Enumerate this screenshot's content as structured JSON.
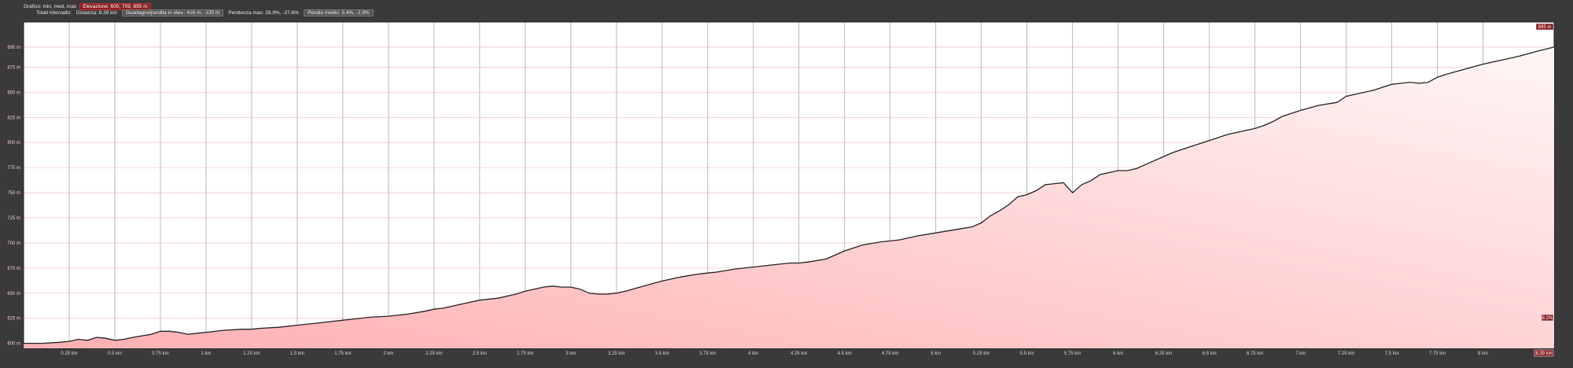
{
  "header": {
    "row1_label": "Grafico: min, med, max",
    "row1_value": "Elevazione: 600, 709, 895 m",
    "row2_label": "Totali intervallo:",
    "row2_distance": "Distanza: 8.39 km",
    "row2_gain": "Guadagno/perdita in elev.: 416 m, -120 m",
    "row2_slope": "Pendenza max: 28.9%, -27.6%",
    "row2_slope_avg": "Pendio medio: 5.4%, -2.9%"
  },
  "colors": {
    "background": "#3a3a3a",
    "plot_bg": "#ffffff",
    "fill_bottom": "#ffb0b2",
    "fill_top": "#fff6f6",
    "line": "#222222",
    "badge": "#8a1f22"
  },
  "chart_data": {
    "type": "area",
    "title": "",
    "xlabel": "",
    "ylabel": "",
    "xlim": [
      0,
      8.39
    ],
    "ylim": [
      595,
      920
    ],
    "grid": true,
    "y_tick_labels": [
      {
        "value": 600,
        "label": "600 m"
      },
      {
        "value": 625,
        "label": "625 m"
      },
      {
        "value": 650,
        "label": "650 m"
      },
      {
        "value": 675,
        "label": "675 m"
      },
      {
        "value": 700,
        "label": "700 m"
      },
      {
        "value": 725,
        "label": "725 m"
      },
      {
        "value": 750,
        "label": "750 m"
      },
      {
        "value": 775,
        "label": "775 m"
      },
      {
        "value": 800,
        "label": "800 m"
      },
      {
        "value": 825,
        "label": "825 m"
      },
      {
        "value": 850,
        "label": "850 m"
      },
      {
        "value": 875,
        "label": "875 m"
      },
      {
        "value": 895,
        "label": "895 m"
      }
    ],
    "x_tick_labels": [
      {
        "value": 0.25,
        "label": "0.25 km"
      },
      {
        "value": 0.5,
        "label": "0.5 km"
      },
      {
        "value": 0.75,
        "label": "0.75 km"
      },
      {
        "value": 1,
        "label": "1 km"
      },
      {
        "value": 1.25,
        "label": "1.25 km"
      },
      {
        "value": 1.5,
        "label": "1.5 km"
      },
      {
        "value": 1.75,
        "label": "1.75 km"
      },
      {
        "value": 2,
        "label": "2 km"
      },
      {
        "value": 2.25,
        "label": "2.25 km"
      },
      {
        "value": 2.5,
        "label": "2.5 km"
      },
      {
        "value": 2.75,
        "label": "2.75 km"
      },
      {
        "value": 3,
        "label": "3 km"
      },
      {
        "value": 3.25,
        "label": "3.25 km"
      },
      {
        "value": 3.5,
        "label": "3.5 km"
      },
      {
        "value": 3.75,
        "label": "3.75 km"
      },
      {
        "value": 4,
        "label": "4 km"
      },
      {
        "value": 4.25,
        "label": "4.25 km"
      },
      {
        "value": 4.5,
        "label": "4.5 km"
      },
      {
        "value": 4.75,
        "label": "4.75 km"
      },
      {
        "value": 5,
        "label": "5 km"
      },
      {
        "value": 5.25,
        "label": "5.25 km"
      },
      {
        "value": 5.5,
        "label": "5.5 km"
      },
      {
        "value": 5.75,
        "label": "5.75 km"
      },
      {
        "value": 6,
        "label": "6 km"
      },
      {
        "value": 6.25,
        "label": "6.25 km"
      },
      {
        "value": 6.5,
        "label": "6.5 km"
      },
      {
        "value": 6.75,
        "label": "6.75 km"
      },
      {
        "value": 7,
        "label": "7 km"
      },
      {
        "value": 7.25,
        "label": "7.25 km"
      },
      {
        "value": 7.5,
        "label": "7.5 km"
      },
      {
        "value": 7.75,
        "label": "7.75 km"
      },
      {
        "value": 8,
        "label": "8 km"
      }
    ],
    "end_x_label": "8.39 km",
    "end_y_label": "895 m",
    "end_slope_label": "8.2%",
    "series": [
      {
        "x": [
          0,
          0.1,
          0.2,
          0.25,
          0.3,
          0.35,
          0.4,
          0.45,
          0.5,
          0.55,
          0.6,
          0.7,
          0.75,
          0.8,
          0.85,
          0.9,
          0.95,
          1.0,
          1.1,
          1.2,
          1.25,
          1.3,
          1.4,
          1.5,
          1.6,
          1.7,
          1.75,
          1.8,
          1.9,
          2.0,
          2.1,
          2.2,
          2.25,
          2.3,
          2.4,
          2.5,
          2.6,
          2.7,
          2.75,
          2.8,
          2.85,
          2.9,
          2.95,
          3.0,
          3.05,
          3.1,
          3.15,
          3.2,
          3.25,
          3.3,
          3.4,
          3.5,
          3.6,
          3.7,
          3.75,
          3.8,
          3.9,
          4.0,
          4.1,
          4.2,
          4.25,
          4.3,
          4.4,
          4.5,
          4.6,
          4.7,
          4.75,
          4.8,
          4.9,
          5.0,
          5.1,
          5.2,
          5.25,
          5.3,
          5.35,
          5.4,
          5.45,
          5.5,
          5.55,
          5.6,
          5.65,
          5.7,
          5.75,
          5.8,
          5.85,
          5.9,
          5.95,
          6.0,
          6.05,
          6.1,
          6.15,
          6.2,
          6.25,
          6.3,
          6.4,
          6.5,
          6.6,
          6.7,
          6.75,
          6.8,
          6.85,
          6.9,
          7.0,
          7.1,
          7.2,
          7.25,
          7.3,
          7.4,
          7.5,
          7.6,
          7.65,
          7.7,
          7.75,
          7.8,
          7.9,
          8.0,
          8.1,
          8.2,
          8.3,
          8.39
        ],
        "y": [
          600,
          600,
          601,
          602,
          604,
          603,
          606,
          605,
          603,
          604,
          606,
          609,
          612,
          612,
          611,
          609,
          610,
          611,
          613,
          614,
          614,
          615,
          616,
          618,
          620,
          622,
          623,
          624,
          626,
          627,
          629,
          632,
          634,
          635,
          639,
          643,
          645,
          649,
          652,
          654,
          656,
          657,
          656,
          656,
          654,
          650,
          649,
          649,
          650,
          652,
          657,
          662,
          666,
          669,
          670,
          671,
          674,
          676,
          678,
          680,
          680,
          681,
          684,
          692,
          698,
          701,
          702,
          703,
          707,
          710,
          713,
          716,
          720,
          727,
          732,
          738,
          746,
          748,
          752,
          758,
          759,
          760,
          750,
          758,
          762,
          768,
          770,
          772,
          772,
          774,
          778,
          782,
          786,
          790,
          796,
          802,
          808,
          812,
          814,
          817,
          821,
          826,
          832,
          837,
          840,
          846,
          848,
          852,
          858,
          860,
          859,
          860,
          865,
          868,
          873,
          878,
          882,
          886,
          891,
          895
        ]
      }
    ]
  }
}
